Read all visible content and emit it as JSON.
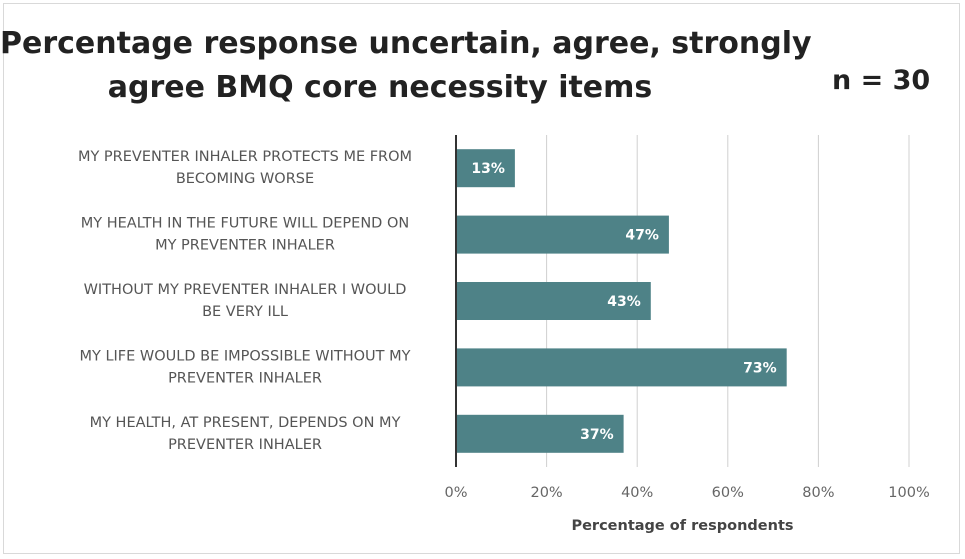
{
  "chart_data": {
    "type": "bar",
    "orientation": "horizontal",
    "title_lines": [
      "Percentage response uncertain, agree, strongly",
      "agree BMQ core necessity items"
    ],
    "annotation": "n = 30",
    "xlabel": "Percentage of respondents",
    "ylabel": "",
    "xlim": [
      0,
      100
    ],
    "xticks": [
      "0%",
      "20%",
      "40%",
      "60%",
      "80%",
      "100%"
    ],
    "grid": true,
    "bar_color": "#4e8287",
    "categories": [
      [
        "MY PREVENTER INHALER PROTECTS ME FROM",
        "BECOMING WORSE"
      ],
      [
        "MY HEALTH IN THE FUTURE WILL DEPEND ON",
        "MY PREVENTER INHALER"
      ],
      [
        "WITHOUT MY PREVENTER INHALER I WOULD",
        "BE VERY ILL"
      ],
      [
        "MY LIFE WOULD BE IMPOSSIBLE WITHOUT MY",
        "PREVENTER INHALER"
      ],
      [
        "MY HEALTH, AT PRESENT, DEPENDS ON MY",
        "PREVENTER INHALER"
      ]
    ],
    "values": [
      13,
      47,
      43,
      73,
      37
    ],
    "data_labels": [
      "13%",
      "47%",
      "43%",
      "73%",
      "37%"
    ]
  }
}
